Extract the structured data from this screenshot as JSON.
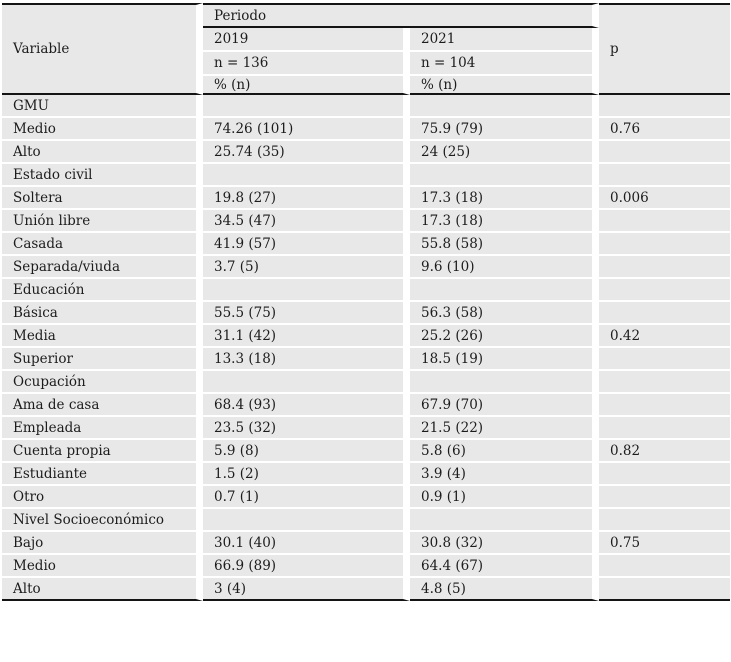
{
  "colors": {
    "cell_bg": "#e8e8e8",
    "rule": "#141414",
    "text": "#1c1c1c",
    "gap": "#ffffff"
  },
  "table": {
    "header": {
      "variable_label": "Variable",
      "periodo_label": "Periodo",
      "p_label": "p",
      "col_2019": {
        "year": "2019",
        "n": "n = 136",
        "measure": "% (n)"
      },
      "col_2021": {
        "year": "2021",
        "n": "n = 104",
        "measure": "% (n)"
      }
    },
    "rows": [
      {
        "type": "section",
        "label": "GMU",
        "v2019": "",
        "v2021": "",
        "p": ""
      },
      {
        "type": "data",
        "label": "Medio",
        "v2019": "74.26 (101)",
        "v2021": "75.9 (79)",
        "p": "0.76"
      },
      {
        "type": "data",
        "label": "Alto",
        "v2019": "25.74 (35)",
        "v2021": "24 (25)",
        "p": ""
      },
      {
        "type": "section",
        "label": "Estado civil",
        "v2019": "",
        "v2021": "",
        "p": ""
      },
      {
        "type": "data",
        "label": "Soltera",
        "v2019": "19.8 (27)",
        "v2021": "17.3 (18)",
        "p": "0.006"
      },
      {
        "type": "data",
        "label": "Unión libre",
        "v2019": "34.5 (47)",
        "v2021": "17.3 (18)",
        "p": ""
      },
      {
        "type": "data",
        "label": "Casada",
        "v2019": "41.9 (57)",
        "v2021": "55.8 (58)",
        "p": ""
      },
      {
        "type": "data",
        "label": "Separada/viuda",
        "v2019": "3.7 (5)",
        "v2021": "9.6 (10)",
        "p": ""
      },
      {
        "type": "section",
        "label": "Educación",
        "v2019": "",
        "v2021": "",
        "p": ""
      },
      {
        "type": "data",
        "label": "Básica",
        "v2019": "55.5 (75)",
        "v2021": "56.3 (58)",
        "p": ""
      },
      {
        "type": "data",
        "label": "Media",
        "v2019": "31.1 (42)",
        "v2021": "25.2 (26)",
        "p": "0.42"
      },
      {
        "type": "data",
        "label": "Superior",
        "v2019": "13.3 (18)",
        "v2021": "18.5 (19)",
        "p": ""
      },
      {
        "type": "section",
        "label": "Ocupación",
        "v2019": "",
        "v2021": "",
        "p": ""
      },
      {
        "type": "data",
        "label": "Ama de casa",
        "v2019": "68.4 (93)",
        "v2021": "67.9 (70)",
        "p": ""
      },
      {
        "type": "data",
        "label": "Empleada",
        "v2019": "23.5 (32)",
        "v2021": "21.5 (22)",
        "p": ""
      },
      {
        "type": "data",
        "label": "Cuenta propia",
        "v2019": "5.9 (8)",
        "v2021": "5.8 (6)",
        "p": "0.82"
      },
      {
        "type": "data",
        "label": "Estudiante",
        "v2019": "1.5 (2)",
        "v2021": "3.9 (4)",
        "p": ""
      },
      {
        "type": "data",
        "label": "Otro",
        "v2019": "0.7 (1)",
        "v2021": "0.9 (1)",
        "p": ""
      },
      {
        "type": "section",
        "label": "Nivel Socioeconómico",
        "v2019": "",
        "v2021": "",
        "p": ""
      },
      {
        "type": "data",
        "label": "Bajo",
        "v2019": "30.1 (40)",
        "v2021": "30.8 (32)",
        "p": "0.75"
      },
      {
        "type": "data",
        "label": "Medio",
        "v2019": "66.9 (89)",
        "v2021": "64.4 (67)",
        "p": ""
      },
      {
        "type": "data",
        "label": "Alto",
        "v2019": "3 (4)",
        "v2021": "4.8 (5)",
        "p": ""
      }
    ]
  }
}
